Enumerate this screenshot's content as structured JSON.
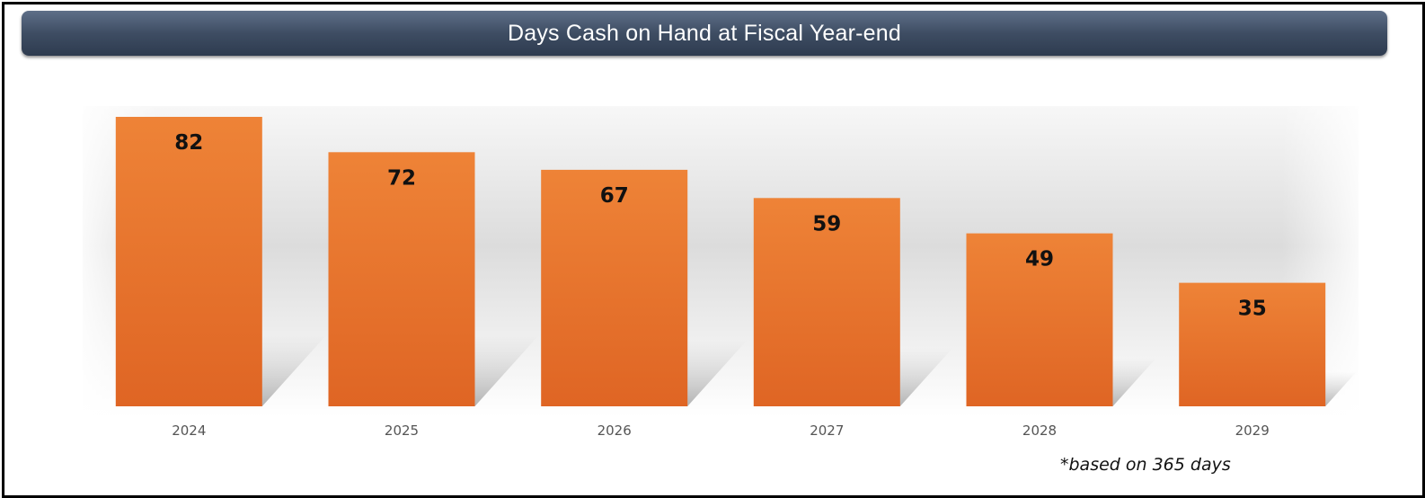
{
  "title": "Days Cash on Hand at Fiscal Year-end",
  "footnote": "*based on 365 days",
  "colors": {
    "bar": "#E8732C",
    "title_bar": "#3E4D63"
  },
  "chart_data": {
    "type": "bar",
    "title": "Days Cash on Hand at Fiscal Year-end",
    "categories": [
      "2024",
      "2025",
      "2026",
      "2027",
      "2028",
      "2029"
    ],
    "values": [
      82,
      72,
      67,
      59,
      49,
      35
    ],
    "xlabel": "",
    "ylabel": "",
    "ylim": [
      0,
      82
    ],
    "grid": false,
    "legend": "none",
    "data_labels": true
  }
}
